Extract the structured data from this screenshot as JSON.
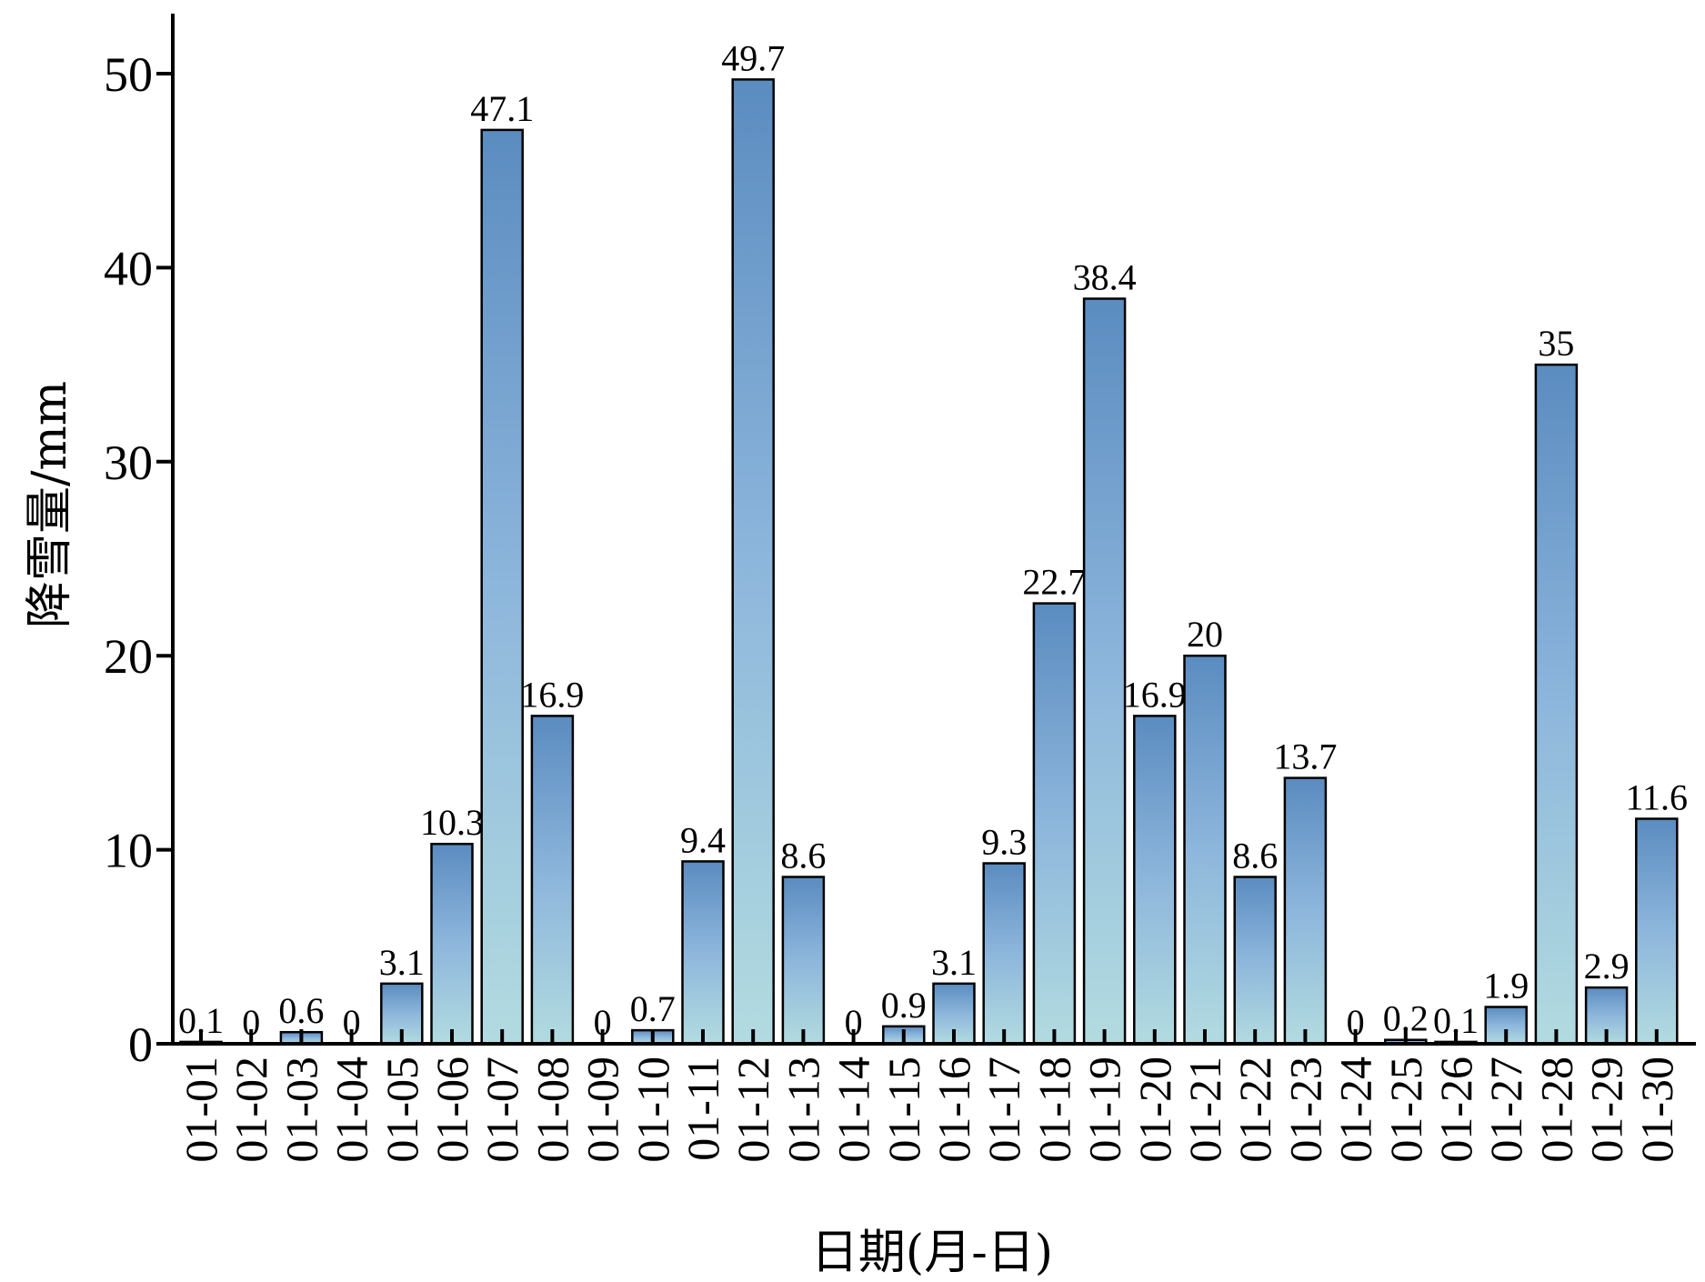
{
  "chart_data": {
    "type": "bar",
    "xlabel": "日期(月-日)",
    "ylabel": "降雪量/mm",
    "ylim": [
      0,
      53
    ],
    "yticks": [
      0,
      10,
      20,
      30,
      40,
      50
    ],
    "grid": false,
    "colors": {
      "bar_top": "#5b8cc0",
      "bar_mid": "#8db6dc",
      "bar_bottom": "#b2dbe0",
      "outline": "#000000"
    },
    "categories": [
      "01-01",
      "01-02",
      "01-03",
      "01-04",
      "01-05",
      "01-06",
      "01-07",
      "01-08",
      "01-09",
      "01-10",
      "01-11",
      "01-12",
      "01-13",
      "01-14",
      "01-15",
      "01-16",
      "01-17",
      "01-18",
      "01-19",
      "01-20",
      "01-21",
      "01-22",
      "01-23",
      "01-24",
      "01-25",
      "01-26",
      "01-27",
      "01-28",
      "01-29",
      "01-30"
    ],
    "values": [
      0.1,
      0,
      0.6,
      0,
      3.1,
      10.3,
      47.1,
      16.9,
      0,
      0.7,
      9.4,
      49.7,
      8.6,
      0,
      0.9,
      3.1,
      9.3,
      22.7,
      38.4,
      16.9,
      20,
      8.6,
      13.7,
      0,
      0.2,
      0.1,
      1.9,
      35,
      2.9,
      11.6
    ],
    "value_labels": [
      "0.1",
      "0",
      "0.6",
      "0",
      "3.1",
      "10.3",
      "47.1",
      "16.9",
      "0",
      "0.7",
      "9.4",
      "49.7",
      "8.6",
      "0",
      "0.9",
      "3.1",
      "9.3",
      "22.7",
      "38.4",
      "16.9",
      "20",
      "8.6",
      "13.7",
      "0",
      "0.2",
      "0.1",
      "1.9",
      "35",
      "2.9",
      "11.6"
    ]
  }
}
